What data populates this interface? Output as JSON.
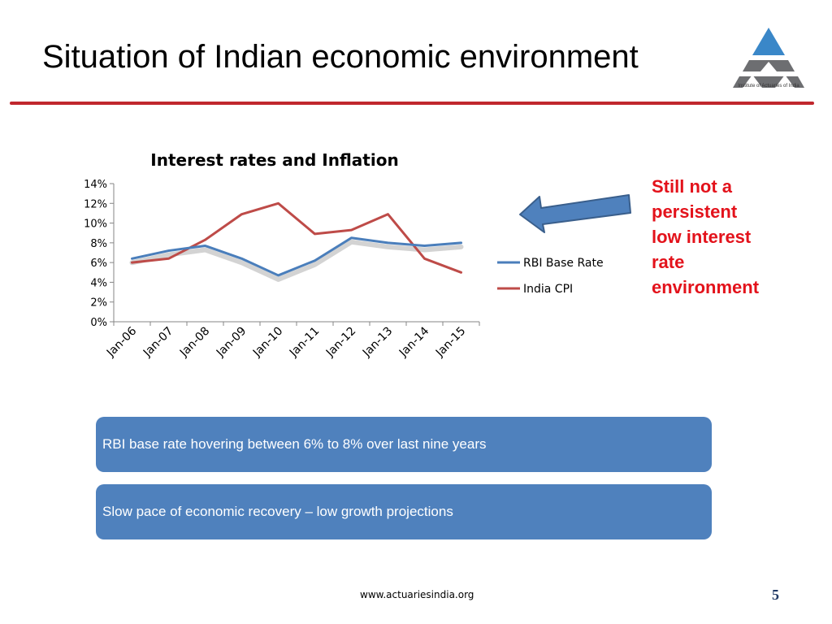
{
  "slide": {
    "title": "Situation of Indian economic environment",
    "logo_caption": "Institute of Actuaries of India",
    "callout": [
      "Still not a",
      "persistent",
      "low interest",
      "rate",
      "environment"
    ],
    "boxes": [
      "RBI base rate hovering between 6% to 8% over last nine years",
      "Slow pace of economic recovery – low growth projections"
    ],
    "footer_url": "www.actuariesindia.org",
    "page_number": "5"
  },
  "colors": {
    "accent_red": "#c0272d",
    "callout_red": "#e3121b",
    "box_blue": "#4f81bd",
    "rbi_line": "#4a7ebb",
    "cpi_line": "#be4b48"
  },
  "chart_data": {
    "type": "line",
    "title": "Interest rates and Inflation",
    "xlabel": "",
    "ylabel": "",
    "categories": [
      "Jan-06",
      "Jan-07",
      "Jan-08",
      "Jan-09",
      "Jan-10",
      "Jan-11",
      "Jan-12",
      "Jan-13",
      "Jan-14",
      "Jan-15"
    ],
    "y_tick_labels": [
      "0%",
      "2%",
      "4%",
      "6%",
      "8%",
      "10%",
      "12%",
      "14%"
    ],
    "ylim": [
      0,
      0.14
    ],
    "grid": false,
    "legend": "right",
    "series": [
      {
        "name": "RBI Base Rate",
        "color": "#4a7ebb",
        "values": [
          0.064,
          0.072,
          0.077,
          0.064,
          0.047,
          0.062,
          0.085,
          0.08,
          0.077,
          0.08
        ]
      },
      {
        "name": "India CPI",
        "color": "#be4b48",
        "values": [
          0.06,
          0.064,
          0.083,
          0.109,
          0.12,
          0.089,
          0.093,
          0.109,
          0.064,
          0.05
        ]
      }
    ]
  }
}
